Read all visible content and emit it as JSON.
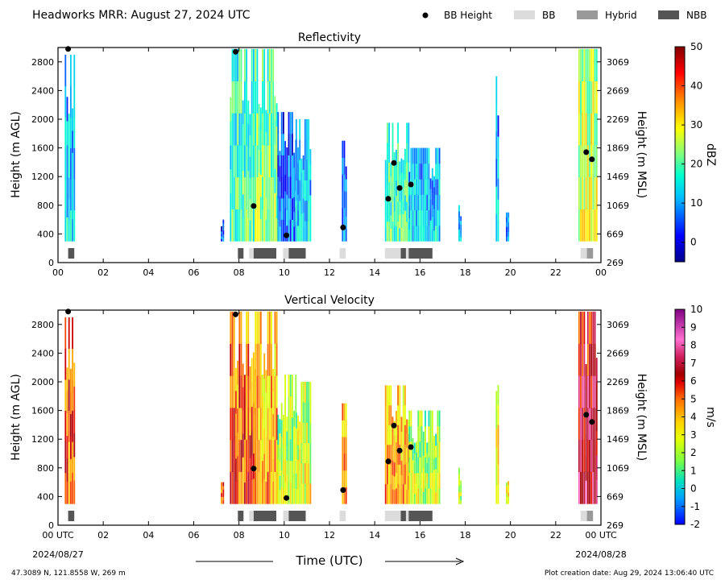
{
  "title": "Headworks MRR:  August 27, 2024 UTC",
  "legend": [
    {
      "label": "BB Height",
      "kind": "dot",
      "color": "#000000"
    },
    {
      "label": "BB",
      "kind": "box",
      "color": "#dcdcdc"
    },
    {
      "label": "Hybrid",
      "kind": "box",
      "color": "#999999"
    },
    {
      "label": "NBB",
      "kind": "box",
      "color": "#555555"
    }
  ],
  "x_axis": {
    "label": "Time (UTC)",
    "range": [
      0,
      24
    ],
    "ticks": [
      "00",
      "02",
      "04",
      "06",
      "08",
      "10",
      "12",
      "14",
      "16",
      "18",
      "20",
      "22",
      "00"
    ],
    "ticks_bottom": [
      "00 UTC",
      "02",
      "04",
      "06",
      "08",
      "10",
      "12",
      "14",
      "16",
      "18",
      "20",
      "22",
      "00 UTC"
    ],
    "start_date": "2024/08/27",
    "end_date": "2024/08/28"
  },
  "footer": {
    "location": "47.3089 N, 121.8558 W, 269 m",
    "created": "Plot creation date: Aug 29, 2024 13:06:40 UTC"
  },
  "colors": {
    "bb": "#dcdcdc",
    "hybrid": "#999999",
    "nbb": "#555555"
  },
  "chart_data": [
    {
      "type": "heatmap",
      "title": "Reflectivity",
      "ylabel": "Height (m AGL)",
      "ylabel_right": "Height (m MSL)",
      "ylim": [
        0,
        3000
      ],
      "yticks": [
        0,
        400,
        800,
        1200,
        1600,
        2000,
        2400,
        2800
      ],
      "yticks_right": [
        269,
        669,
        1069,
        1469,
        1869,
        2269,
        2669,
        3069
      ],
      "colorbar": {
        "label": "dBZ",
        "range": [
          -5,
          50
        ],
        "ticks": [
          0,
          10,
          20,
          30,
          40,
          50
        ],
        "colormap": "jet"
      },
      "bb_height_points": [
        {
          "x": 0.45,
          "y": 2980
        },
        {
          "x": 7.85,
          "y": 2940
        },
        {
          "x": 8.65,
          "y": 790
        },
        {
          "x": 10.1,
          "y": 380
        },
        {
          "x": 12.6,
          "y": 490
        },
        {
          "x": 14.6,
          "y": 890
        },
        {
          "x": 14.85,
          "y": 1390
        },
        {
          "x": 15.1,
          "y": 1040
        },
        {
          "x": 15.6,
          "y": 1090
        },
        {
          "x": 23.35,
          "y": 1540
        },
        {
          "x": 23.6,
          "y": 1440
        }
      ],
      "echo_regions": [
        {
          "x_start": 0.3,
          "x_end": 0.75,
          "top": 2900,
          "core_value": 14
        },
        {
          "x_start": 7.2,
          "x_end": 7.3,
          "top": 600,
          "core_value": 5
        },
        {
          "x_start": 7.6,
          "x_end": 8.7,
          "top": 2980,
          "core_value": 20
        },
        {
          "x_start": 8.7,
          "x_end": 9.7,
          "top": 2980,
          "core_value": 24
        },
        {
          "x_start": 9.7,
          "x_end": 10.5,
          "top": 2100,
          "core_value": 8
        },
        {
          "x_start": 10.5,
          "x_end": 11.2,
          "top": 2000,
          "core_value": 14
        },
        {
          "x_start": 12.55,
          "x_end": 12.75,
          "top": 1700,
          "core_value": 10
        },
        {
          "x_start": 14.45,
          "x_end": 15.5,
          "top": 1950,
          "core_value": 20
        },
        {
          "x_start": 15.5,
          "x_end": 16.9,
          "top": 1600,
          "core_value": 14
        },
        {
          "x_start": 17.7,
          "x_end": 17.8,
          "top": 800,
          "core_value": 12
        },
        {
          "x_start": 19.35,
          "x_end": 19.45,
          "top": 2600,
          "core_value": 12
        },
        {
          "x_start": 19.8,
          "x_end": 19.9,
          "top": 700,
          "core_value": 10
        },
        {
          "x_start": 23.0,
          "x_end": 23.85,
          "top": 2980,
          "core_value": 28
        }
      ]
    },
    {
      "type": "heatmap",
      "title": "Vertical Velocity",
      "ylabel": "Height (m AGL)",
      "ylabel_right": "Height (m MSL)",
      "ylim": [
        0,
        3000
      ],
      "yticks": [
        0,
        400,
        800,
        1200,
        1600,
        2000,
        2400,
        2800
      ],
      "yticks_right": [
        269,
        669,
        1069,
        1469,
        1869,
        2269,
        2669,
        3069
      ],
      "colorbar": {
        "label": "m/s",
        "range": [
          -2,
          10
        ],
        "ticks": [
          -2,
          -1,
          0,
          1,
          2,
          3,
          4,
          5,
          6,
          7,
          8,
          9,
          10
        ],
        "colormap": "velocity"
      },
      "bb_height_points": [
        {
          "x": 0.45,
          "y": 2980
        },
        {
          "x": 7.85,
          "y": 2940
        },
        {
          "x": 8.65,
          "y": 790
        },
        {
          "x": 10.1,
          "y": 380
        },
        {
          "x": 12.6,
          "y": 490
        },
        {
          "x": 14.6,
          "y": 890
        },
        {
          "x": 14.85,
          "y": 1390
        },
        {
          "x": 15.1,
          "y": 1040
        },
        {
          "x": 15.6,
          "y": 1090
        },
        {
          "x": 23.35,
          "y": 1540
        },
        {
          "x": 23.6,
          "y": 1440
        }
      ],
      "echo_regions": [
        {
          "x_start": 0.3,
          "x_end": 0.75,
          "top": 2900,
          "core_value": 5.5
        },
        {
          "x_start": 7.2,
          "x_end": 7.3,
          "top": 600,
          "core_value": 5.5
        },
        {
          "x_start": 7.6,
          "x_end": 8.7,
          "top": 2980,
          "core_value": 5.5
        },
        {
          "x_start": 8.7,
          "x_end": 9.7,
          "top": 2980,
          "core_value": 4.5
        },
        {
          "x_start": 9.7,
          "x_end": 10.5,
          "top": 2100,
          "core_value": 2.5
        },
        {
          "x_start": 10.5,
          "x_end": 11.2,
          "top": 2000,
          "core_value": 3
        },
        {
          "x_start": 12.55,
          "x_end": 12.75,
          "top": 1700,
          "core_value": 5
        },
        {
          "x_start": 14.45,
          "x_end": 15.5,
          "top": 1950,
          "core_value": 4.5
        },
        {
          "x_start": 15.5,
          "x_end": 16.9,
          "top": 1600,
          "core_value": 2.5
        },
        {
          "x_start": 17.7,
          "x_end": 17.8,
          "top": 800,
          "core_value": 2.5
        },
        {
          "x_start": 19.35,
          "x_end": 19.45,
          "top": 2600,
          "core_value": 3.5
        },
        {
          "x_start": 19.8,
          "x_end": 19.9,
          "top": 700,
          "core_value": 3.5
        },
        {
          "x_start": 23.0,
          "x_end": 23.85,
          "top": 2980,
          "core_value": 7
        }
      ]
    }
  ],
  "bb_type_bars": [
    {
      "x_start": 0.45,
      "x_end": 0.72,
      "type": "nbb"
    },
    {
      "x_start": 7.95,
      "x_end": 8.2,
      "type": "nbb"
    },
    {
      "x_start": 8.45,
      "x_end": 8.65,
      "type": "bb"
    },
    {
      "x_start": 8.65,
      "x_end": 9.65,
      "type": "nbb"
    },
    {
      "x_start": 9.95,
      "x_end": 10.2,
      "type": "bb"
    },
    {
      "x_start": 10.2,
      "x_end": 10.95,
      "type": "nbb"
    },
    {
      "x_start": 12.45,
      "x_end": 12.72,
      "type": "bb"
    },
    {
      "x_start": 14.45,
      "x_end": 15.15,
      "type": "bb"
    },
    {
      "x_start": 15.15,
      "x_end": 15.38,
      "type": "nbb"
    },
    {
      "x_start": 15.38,
      "x_end": 15.5,
      "type": "bb"
    },
    {
      "x_start": 15.5,
      "x_end": 16.55,
      "type": "nbb"
    },
    {
      "x_start": 23.1,
      "x_end": 23.38,
      "type": "bb"
    },
    {
      "x_start": 23.38,
      "x_end": 23.65,
      "type": "hybrid"
    }
  ]
}
